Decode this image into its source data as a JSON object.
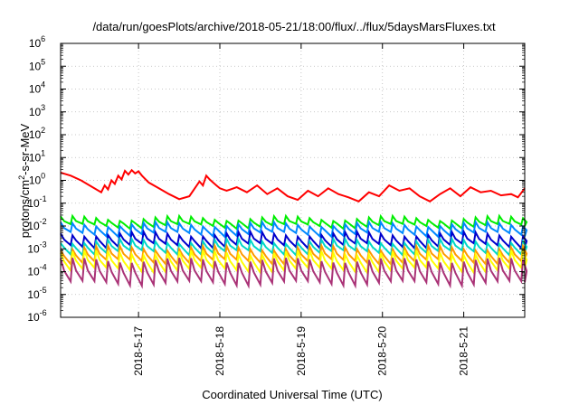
{
  "chart_data": {
    "type": "line",
    "title": "/data/run/goesPlots/archive/2018-05-21/18:00/flux/../flux/5daysMarsFluxes.txt",
    "xlabel": "Coordinated Universal Time (UTC)",
    "ylabel": "protons/cm²-s-sr-MeV",
    "yscale": "log",
    "ylim": [
      1e-06,
      1000000.0
    ],
    "xlim": [
      "2018-05-16 01:00",
      "2018-05-21 18:00"
    ],
    "grid": true,
    "legend": "none",
    "y_ticks": [
      {
        "mantissa": "10",
        "exp": "-6",
        "value": 1e-06
      },
      {
        "mantissa": "10",
        "exp": "-5",
        "value": 1e-05
      },
      {
        "mantissa": "10",
        "exp": "-4",
        "value": 0.0001
      },
      {
        "mantissa": "10",
        "exp": "-3",
        "value": 0.001
      },
      {
        "mantissa": "10",
        "exp": "-2",
        "value": 0.01
      },
      {
        "mantissa": "10",
        "exp": "-1",
        "value": 0.1
      },
      {
        "mantissa": "10",
        "exp": "0",
        "value": 1
      },
      {
        "mantissa": "10",
        "exp": "1",
        "value": 10
      },
      {
        "mantissa": "10",
        "exp": "2",
        "value": 100
      },
      {
        "mantissa": "10",
        "exp": "3",
        "value": 1000
      },
      {
        "mantissa": "10",
        "exp": "4",
        "value": 10000
      },
      {
        "mantissa": "10",
        "exp": "5",
        "value": 100000
      },
      {
        "mantissa": "10",
        "exp": "6",
        "value": 1000000
      }
    ],
    "x_ticks": [
      {
        "label": "2018-5-17",
        "value": "2018-05-17 00:00"
      },
      {
        "label": "2018-5-18",
        "value": "2018-05-18 00:00"
      },
      {
        "label": "2018-5-19",
        "value": "2018-05-19 00:00"
      },
      {
        "label": "2018-5-20",
        "value": "2018-05-20 00:00"
      },
      {
        "label": "2018-5-21",
        "value": "2018-05-21 00:00"
      }
    ],
    "series": [
      {
        "color": "#ff0000",
        "x": [
          "2018-05-16 01:00",
          "2018-05-16 04:00",
          "2018-05-16 07:00",
          "2018-05-16 10:00",
          "2018-05-16 13:00",
          "2018-05-16 14:00",
          "2018-05-16 15:00",
          "2018-05-16 16:00",
          "2018-05-16 17:00",
          "2018-05-16 18:00",
          "2018-05-16 19:00",
          "2018-05-16 20:00",
          "2018-05-16 21:00",
          "2018-05-16 22:00",
          "2018-05-16 23:00",
          "2018-05-17 00:00",
          "2018-05-17 01:00",
          "2018-05-17 03:00",
          "2018-05-17 06:00",
          "2018-05-17 09:00",
          "2018-05-17 12:00",
          "2018-05-17 15:00",
          "2018-05-17 18:00",
          "2018-05-17 19:00",
          "2018-05-17 20:00",
          "2018-05-17 21:00",
          "2018-05-17 22:00",
          "2018-05-17 23:00",
          "2018-05-18 00:00",
          "2018-05-18 02:00",
          "2018-05-18 05:00",
          "2018-05-18 08:00",
          "2018-05-18 11:00",
          "2018-05-18 14:00",
          "2018-05-18 17:00",
          "2018-05-18 20:00",
          "2018-05-18 23:00",
          "2018-05-19 02:00",
          "2018-05-19 05:00",
          "2018-05-19 08:00",
          "2018-05-19 11:00",
          "2018-05-19 14:00",
          "2018-05-19 17:00",
          "2018-05-19 20:00",
          "2018-05-19 23:00",
          "2018-05-20 02:00",
          "2018-05-20 05:00",
          "2018-05-20 08:00",
          "2018-05-20 11:00",
          "2018-05-20 14:00",
          "2018-05-20 17:00",
          "2018-05-20 20:00",
          "2018-05-20 23:00",
          "2018-05-21 02:00",
          "2018-05-21 05:00",
          "2018-05-21 08:00",
          "2018-05-21 11:00",
          "2018-05-21 14:00",
          "2018-05-21 16:00",
          "2018-05-21 18:00"
        ],
        "y": [
          2.2,
          1.6,
          1.0,
          0.55,
          0.3,
          0.6,
          0.4,
          1.0,
          0.7,
          1.6,
          1.1,
          2.6,
          1.8,
          2.8,
          2.0,
          2.5,
          1.6,
          0.8,
          0.45,
          0.25,
          0.15,
          0.2,
          0.9,
          0.6,
          1.6,
          1.1,
          0.8,
          0.6,
          0.45,
          0.35,
          0.5,
          0.3,
          0.6,
          0.25,
          0.45,
          0.2,
          0.14,
          0.35,
          0.2,
          0.45,
          0.25,
          0.18,
          0.12,
          0.3,
          0.2,
          0.6,
          0.35,
          0.45,
          0.2,
          0.12,
          0.25,
          0.45,
          0.2,
          0.5,
          0.3,
          0.35,
          0.22,
          0.25,
          0.18,
          0.45
        ]
      },
      {
        "color": "#00ee00",
        "base": 0.022,
        "low": 0.01
      },
      {
        "color": "#0088ff",
        "base": 0.012,
        "low": 0.0045
      },
      {
        "color": "#0000cc",
        "base": 0.0045,
        "low": 0.0014
      },
      {
        "color": "#00d8c8",
        "base": 0.0022,
        "low": 0.0007
      },
      {
        "color": "#ff9900",
        "base": 0.0011,
        "low": 0.00028
      },
      {
        "color": "#ffff00",
        "base": 0.0007,
        "low": 0.00012
      },
      {
        "color": "#aa3377",
        "base": 0.00032,
        "low": 3.2e-05
      }
    ]
  }
}
